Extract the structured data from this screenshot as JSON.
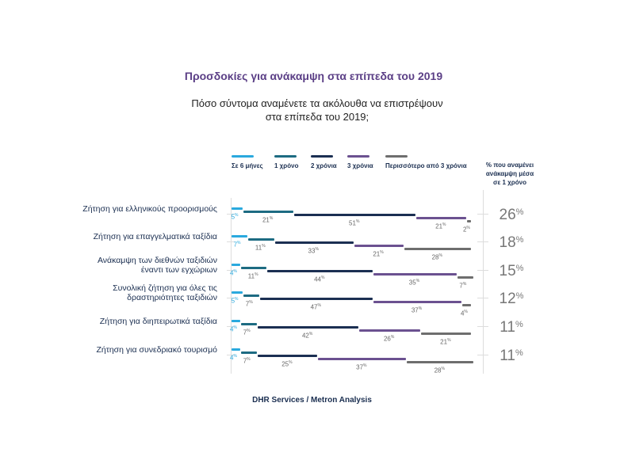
{
  "title": "Προσδοκίες για ανάκαμψη στα επίπεδα του 2019",
  "subtitle_line1": "Πόσο σύντομα αναμένετε τα ακόλουθα να επιστρέψουν",
  "subtitle_line2": "στα επίπεδα του 2019;",
  "source": "DHR Services / Metron Analysis",
  "chart_data": {
    "type": "bar",
    "stacked": true,
    "orientation": "horizontal",
    "legend_position": "top",
    "series": [
      {
        "name": "Σε 6 μήνες",
        "color": "#2aa9de",
        "values": [
          5,
          7,
          4,
          5,
          4,
          4
        ]
      },
      {
        "name": "1 χρόνο",
        "color": "#1d6b82",
        "values": [
          21,
          11,
          11,
          7,
          7,
          7
        ]
      },
      {
        "name": "2 χρόνια",
        "color": "#1b2f52",
        "values": [
          51,
          33,
          44,
          47,
          42,
          25
        ]
      },
      {
        "name": "3 χρόνια",
        "color": "#6b5190",
        "values": [
          21,
          21,
          35,
          37,
          26,
          37
        ]
      },
      {
        "name": "Περισσότερο από 3 χρόνια",
        "color": "#6e6e6e",
        "values": [
          2,
          28,
          7,
          4,
          21,
          28
        ]
      }
    ],
    "categories": [
      [
        "Ζήτηση για ελληνικούς προορισμούς"
      ],
      [
        "Ζήτηση για επαγγελματικά ταξίδια"
      ],
      [
        "Ανάκαμψη των διεθνών ταξιδιών",
        "έναντι των εγχώριων"
      ],
      [
        "Συνολική ζήτηση για όλες τις",
        "δραστηριότητες ταξιδιών"
      ],
      [
        "Ζήτηση για διηπειρωτικά ταξίδια"
      ],
      [
        "Ζήτηση για συνεδριακό τουρισμό"
      ]
    ],
    "right_column_header": [
      "% που αναμένει",
      "ανάκαμψη μέσα",
      "σε 1 χρόνο"
    ],
    "right_column_values": [
      26,
      18,
      15,
      12,
      11,
      11
    ],
    "unit": "%"
  }
}
